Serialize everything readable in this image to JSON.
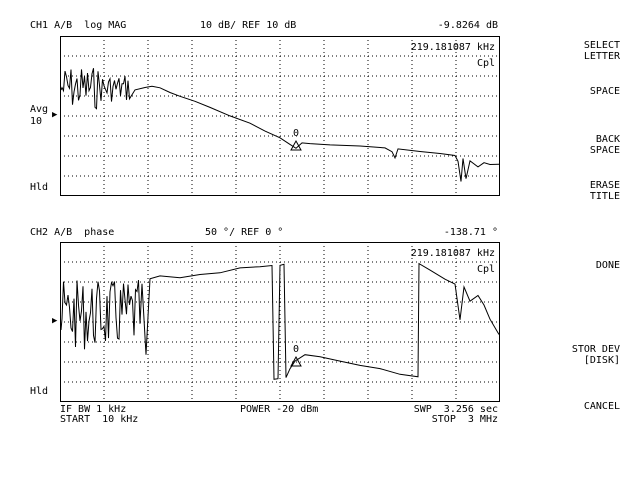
{
  "ch1": {
    "header_left": "CH1 A/B  log MAG",
    "header_scale": "10 dB/ REF 10 dB",
    "header_value": "-9.8264 dB",
    "marker_freq": "219.181087 kHz",
    "coupling": "Cpl",
    "avg_label": "Avg",
    "avg_value": "10",
    "hold_label": "Hld",
    "marker_number": "0"
  },
  "ch2": {
    "header_left": "CH2 A/B  phase",
    "header_scale": "50 °/ REF 0 °",
    "header_value": "-138.71 °",
    "marker_freq": "219.181087 kHz",
    "coupling": "Cpl",
    "hold_label": "Hld",
    "marker_number": "0"
  },
  "footer": {
    "if_bw": "IF BW 1 kHz",
    "start": "START  10 kHz",
    "power": "POWER -20 dBm",
    "sweep": "SWP  3.256 sec",
    "stop": "STOP  3 MHz"
  },
  "softkeys": {
    "select_letter_1": "SELECT",
    "select_letter_2": "LETTER",
    "space": "SPACE",
    "back_space_1": "BACK",
    "back_space_2": "SPACE",
    "erase_title_1": "ERASE",
    "erase_title_2": "TITLE",
    "done": "DONE",
    "stor_dev_1": "STOR DEV",
    "stor_dev_2": "[DISK]",
    "cancel": "CANCEL"
  },
  "colors": {
    "foreground": "#000000",
    "background": "#ffffff"
  }
}
